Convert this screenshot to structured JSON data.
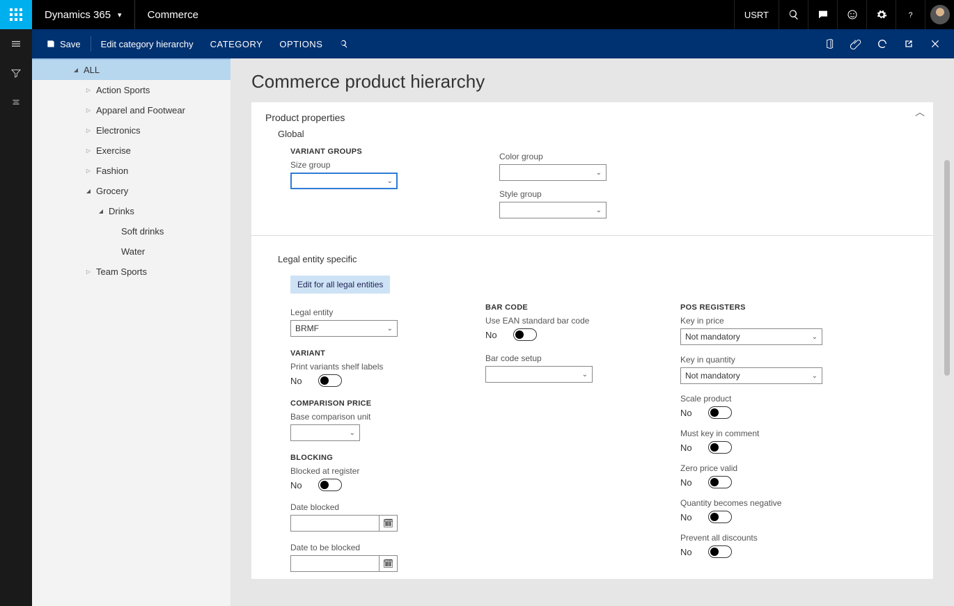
{
  "topbar": {
    "brand": "Dynamics 365",
    "module": "Commerce",
    "user": "USRT"
  },
  "actionbar": {
    "save": "Save",
    "edit_hierarchy": "Edit category hierarchy",
    "tab_category": "CATEGORY",
    "tab_options": "OPTIONS"
  },
  "tree": {
    "root": "ALL",
    "items": [
      {
        "label": "Action Sports",
        "indent": 1,
        "state": "collapsed"
      },
      {
        "label": "Apparel and Footwear",
        "indent": 1,
        "state": "collapsed"
      },
      {
        "label": "Electronics",
        "indent": 1,
        "state": "collapsed"
      },
      {
        "label": "Exercise",
        "indent": 1,
        "state": "collapsed"
      },
      {
        "label": "Fashion",
        "indent": 1,
        "state": "collapsed"
      },
      {
        "label": "Grocery",
        "indent": 1,
        "state": "expanded"
      },
      {
        "label": "Drinks",
        "indent": 2,
        "state": "expanded"
      },
      {
        "label": "Soft drinks",
        "indent": 3,
        "state": "leaf"
      },
      {
        "label": "Water",
        "indent": 3,
        "state": "leaf"
      },
      {
        "label": "Team Sports",
        "indent": 1,
        "state": "collapsed"
      }
    ]
  },
  "page": {
    "title": "Commerce product hierarchy",
    "product_properties": "Product properties",
    "global": "Global",
    "variant_groups_h": "VARIANT GROUPS",
    "size_group": "Size group",
    "color_group": "Color group",
    "style_group": "Style group",
    "legal_entity_specific": "Legal entity specific",
    "edit_all_btn": "Edit for all legal entities",
    "legal_entity": "Legal entity",
    "legal_entity_val": "BRMF",
    "variant_h": "VARIANT",
    "print_variants": "Print variants shelf labels",
    "comparison_price_h": "COMPARISON PRICE",
    "base_comparison_unit": "Base comparison unit",
    "blocking_h": "BLOCKING",
    "blocked_at_register": "Blocked at register",
    "date_blocked": "Date blocked",
    "date_to_be_blocked": "Date to be blocked",
    "barcode_h": "BAR CODE",
    "use_ean": "Use EAN standard bar code",
    "barcode_setup": "Bar code setup",
    "pos_h": "POS REGISTERS",
    "key_in_price": "Key in price",
    "key_in_price_val": "Not mandatory",
    "key_in_quantity": "Key in quantity",
    "key_in_quantity_val": "Not mandatory",
    "scale_product": "Scale product",
    "must_key_comment": "Must key in comment",
    "zero_price_valid": "Zero price valid",
    "qty_negative": "Quantity becomes negative",
    "prevent_discounts": "Prevent all discounts",
    "no": "No"
  },
  "colors": {
    "topbar_bg": "#000000",
    "waffle_bg": "#00b0ee",
    "actionbar_bg": "#003170",
    "tree_bg": "#f3f3f3",
    "tree_selected": "#b7d7ef",
    "page_bg": "#e6e6e6",
    "card_bg": "#ffffff",
    "pill_bg": "#cde3f5",
    "active_border": "#2e7cd6"
  }
}
